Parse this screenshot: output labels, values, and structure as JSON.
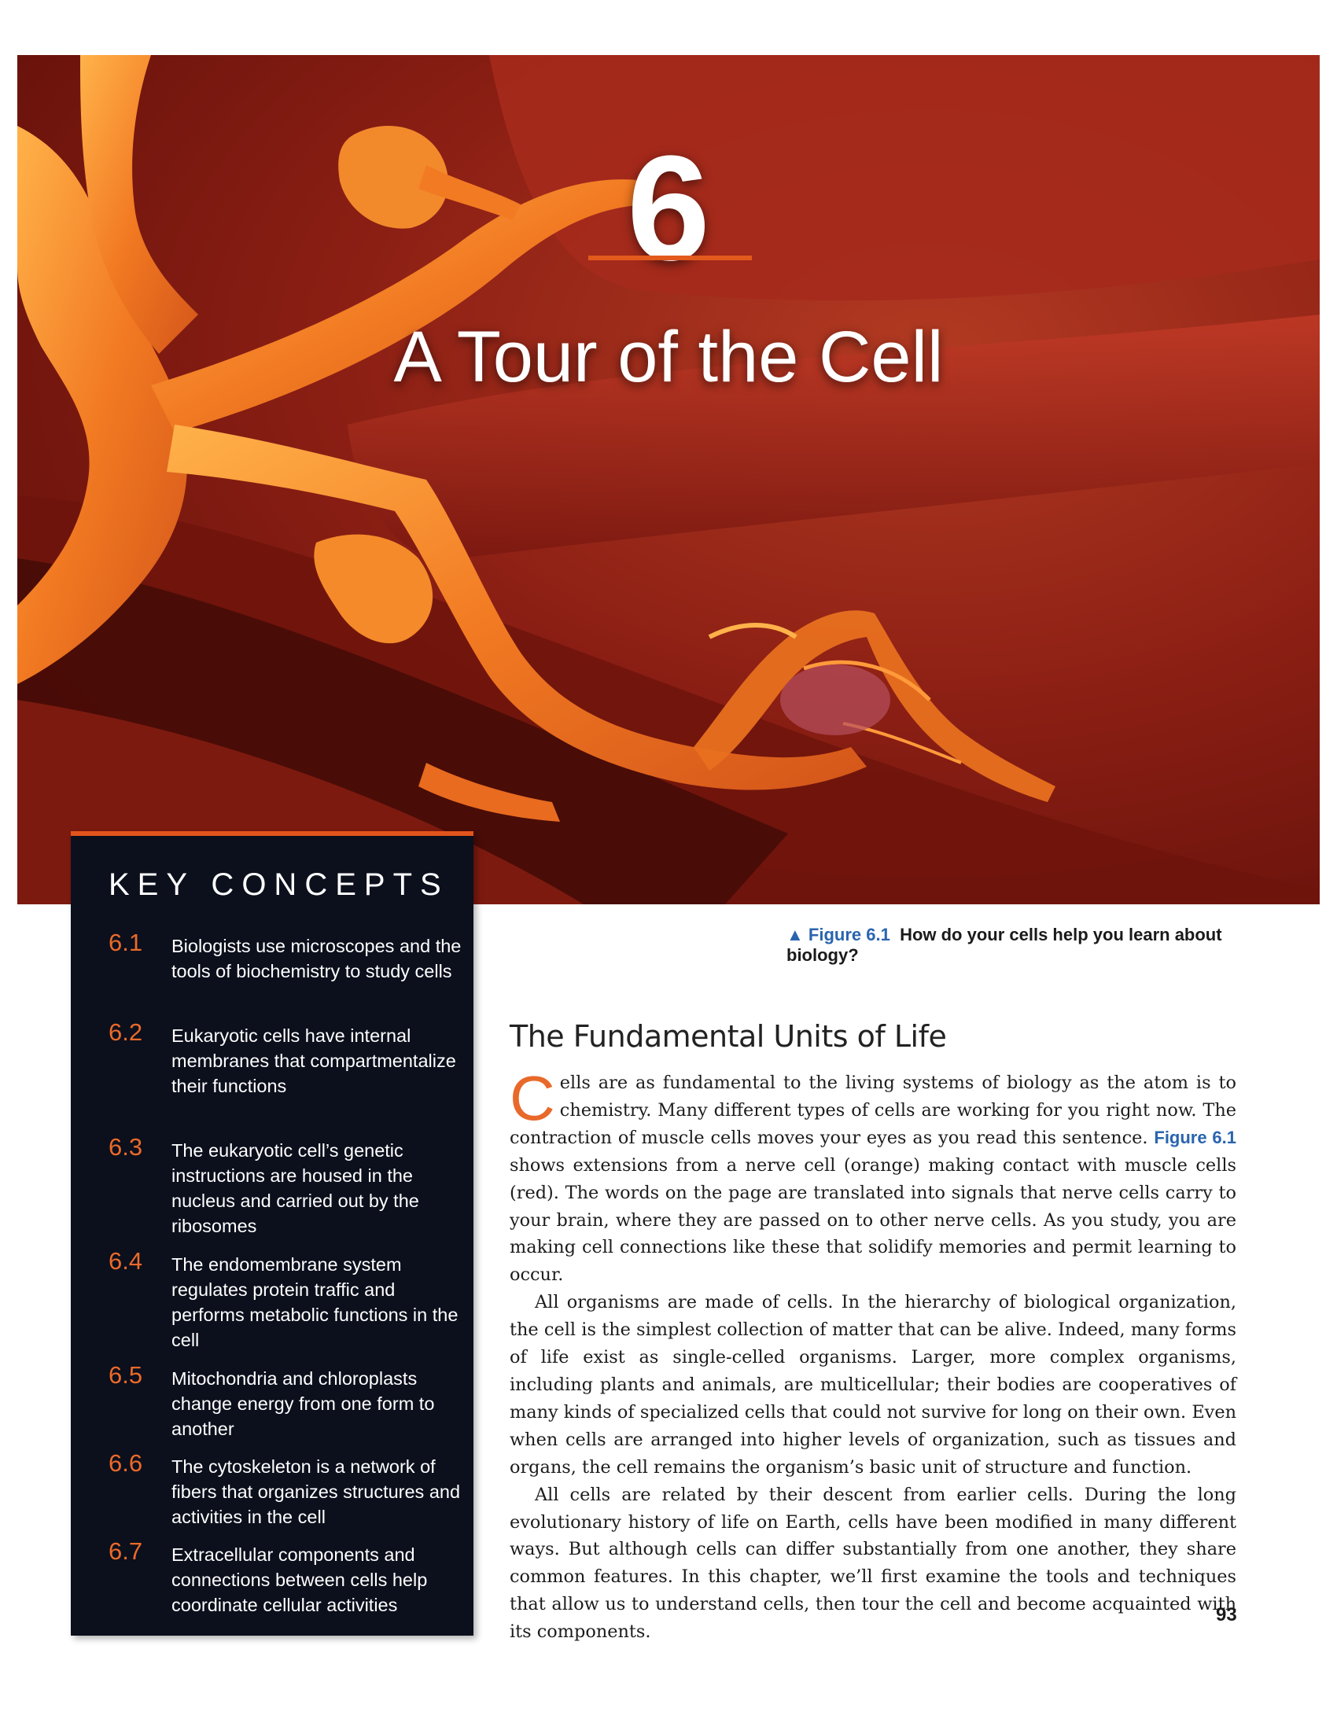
{
  "chapter": {
    "number": "6",
    "title": "A Tour of the Cell"
  },
  "key_concepts": {
    "heading": "KEY CONCEPTS",
    "items": [
      {
        "num": "6.1",
        "text": "Biologists use microscopes and the tools of biochemistry to study cells"
      },
      {
        "num": "6.2",
        "text": "Eukaryotic cells have internal membranes that compartmentalize their functions"
      },
      {
        "num": "6.3",
        "text": "The eukaryotic cell’s genetic instructions are housed in the nucleus and carried out by the ribosomes"
      },
      {
        "num": "6.4",
        "text": "The endomembrane system regulates protein traffic and performs metabolic functions in the cell"
      },
      {
        "num": "6.5",
        "text": "Mitochondria and chloroplasts change energy from one form to another"
      },
      {
        "num": "6.6",
        "text": "The cytoskeleton is a network of fibers that organizes structures and activities in the cell"
      },
      {
        "num": "6.7",
        "text": "Extracellular components and connections between cells help coordinate cellular activities"
      }
    ]
  },
  "figure_caption": {
    "marker": "▲",
    "label": "Figure 6.1",
    "text": "How do your cells help you learn about biology?"
  },
  "section": {
    "heading": "The Fundamental Units of Life",
    "dropcap": "C",
    "p1_a": "ells are as fundamental to the living systems of biology as the atom is to chem­istry. Many different types of cells are working for you right now. The contrac­tion of muscle cells moves your eyes as you read this sentence. ",
    "p1_ref": "Figure 6.1",
    "p1_b": " shows extensions from a nerve cell (orange) making contact with muscle cells (red). The words on the page are translated into signals that nerve cells carry to your brain, where they are passed on to other nerve cells. As you study, you are making cell connections like these that solidify memories and permit learning to occur.",
    "p2": "All organisms are made of cells. In the hierarchy of biological organization, the cell is the simplest collection of matter that can be alive. Indeed, many forms of life exist as single-celled organisms. Larger, more complex organisms, including plants and animals, are multicellular; their bodies are cooperatives of many kinds of specialized cells that could not survive for long on their own. Even when cells are arranged into higher levels of organization, such as tissues and organs, the cell re­mains the organism’s basic unit of structure and function.",
    "p3": "All cells are related by their descent from earlier cells. During the long evolution­ary history of life on Earth, cells have been modified in many different ways. But al­though cells can differ substantially from one another, they share common features. In this chapter, we’ll first examine the tools and techniques that allow us to under­stand cells, then tour the cell and become acquainted with its components."
  },
  "page_number": "93",
  "colors": {
    "accent_orange": "#e2541c",
    "figure_blue": "#2a64ae",
    "panel_bg": "#0c0f1c"
  }
}
